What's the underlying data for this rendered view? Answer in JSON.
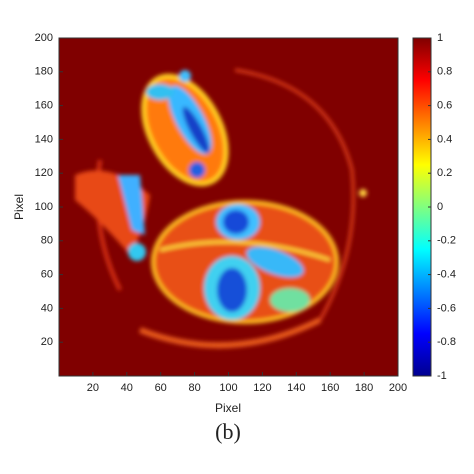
{
  "chart_data": {
    "type": "heatmap",
    "caption": "(b)",
    "x_label": "Pixel",
    "y_label": "Pixel",
    "xlim": [
      0,
      200
    ],
    "xticks": [
      20,
      40,
      60,
      80,
      100,
      120,
      140,
      160,
      180,
      200
    ],
    "ylim": [
      0,
      200
    ],
    "yticks": [
      20,
      40,
      60,
      80,
      100,
      120,
      140,
      160,
      180,
      200
    ],
    "colormap": "jet",
    "clim": [
      -1,
      1
    ],
    "colorbar_ticks": [
      1,
      0.8,
      0.6,
      0.4,
      0.2,
      0,
      -0.2,
      -0.4,
      -0.6,
      -0.8,
      -1
    ]
  }
}
